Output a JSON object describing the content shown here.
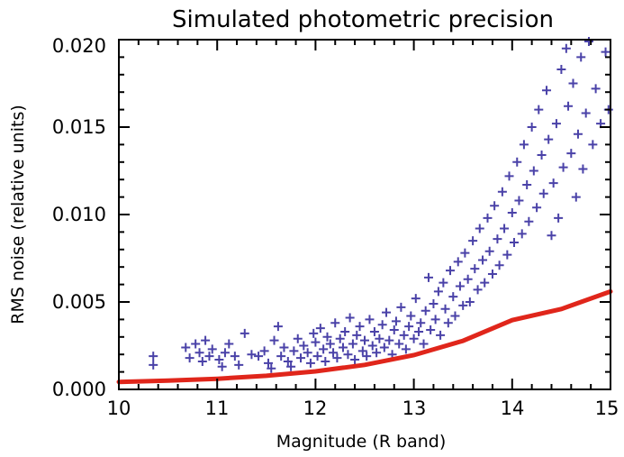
{
  "chart_data": {
    "type": "scatter",
    "title": "Simulated photometric precision",
    "xlabel": "Magnitude (R band)",
    "ylabel": "RMS noise (relative units)",
    "xlim": [
      10,
      15
    ],
    "ylim": [
      0,
      0.02
    ],
    "x_ticks": [
      "10",
      "11",
      "12",
      "13",
      "14",
      "15"
    ],
    "y_ticks": [
      "0.000",
      "0.005",
      "0.010",
      "0.015",
      "0.020"
    ],
    "grid": false,
    "legend": "none",
    "colors": {
      "points": "#4a42a8",
      "curve": "#e0261b",
      "axes": "#000000"
    },
    "series": [
      {
        "type": "scatter",
        "marker": "plus",
        "points": [
          [
            10.35,
            0.0019
          ],
          [
            10.35,
            0.0014
          ],
          [
            10.68,
            0.0024
          ],
          [
            10.72,
            0.0018
          ],
          [
            10.78,
            0.0026
          ],
          [
            10.82,
            0.0021
          ],
          [
            10.85,
            0.0016
          ],
          [
            10.88,
            0.0028
          ],
          [
            10.92,
            0.0019
          ],
          [
            10.95,
            0.0023
          ],
          [
            11.02,
            0.0017
          ],
          [
            11.05,
            0.0013
          ],
          [
            11.08,
            0.0021
          ],
          [
            11.12,
            0.0026
          ],
          [
            11.18,
            0.0019
          ],
          [
            11.22,
            0.0014
          ],
          [
            11.28,
            0.0032
          ],
          [
            11.35,
            0.002
          ],
          [
            11.42,
            0.0019
          ],
          [
            11.48,
            0.0022
          ],
          [
            11.52,
            0.0015
          ],
          [
            11.55,
            0.0012
          ],
          [
            11.58,
            0.0028
          ],
          [
            11.62,
            0.0036
          ],
          [
            11.65,
            0.0019
          ],
          [
            11.68,
            0.0024
          ],
          [
            11.72,
            0.0016
          ],
          [
            11.75,
            0.0013
          ],
          [
            11.78,
            0.0022
          ],
          [
            11.82,
            0.0029
          ],
          [
            11.85,
            0.0018
          ],
          [
            11.88,
            0.0025
          ],
          [
            11.92,
            0.0021
          ],
          [
            11.95,
            0.0015
          ],
          [
            11.98,
            0.0032
          ],
          [
            12.0,
            0.0027
          ],
          [
            12.02,
            0.0019
          ],
          [
            12.05,
            0.0035
          ],
          [
            12.08,
            0.0023
          ],
          [
            12.1,
            0.0016
          ],
          [
            12.12,
            0.003
          ],
          [
            12.15,
            0.0026
          ],
          [
            12.18,
            0.0021
          ],
          [
            12.2,
            0.0038
          ],
          [
            12.22,
            0.0018
          ],
          [
            12.25,
            0.0029
          ],
          [
            12.28,
            0.0024
          ],
          [
            12.3,
            0.0033
          ],
          [
            12.33,
            0.002
          ],
          [
            12.35,
            0.0041
          ],
          [
            12.38,
            0.0026
          ],
          [
            12.4,
            0.0017
          ],
          [
            12.42,
            0.0031
          ],
          [
            12.45,
            0.0036
          ],
          [
            12.48,
            0.0022
          ],
          [
            12.5,
            0.0028
          ],
          [
            12.52,
            0.0019
          ],
          [
            12.55,
            0.004
          ],
          [
            12.58,
            0.0025
          ],
          [
            12.6,
            0.0033
          ],
          [
            12.62,
            0.0021
          ],
          [
            12.65,
            0.0029
          ],
          [
            12.68,
            0.0037
          ],
          [
            12.7,
            0.0024
          ],
          [
            12.72,
            0.0044
          ],
          [
            12.75,
            0.0028
          ],
          [
            12.78,
            0.002
          ],
          [
            12.8,
            0.0034
          ],
          [
            12.82,
            0.0039
          ],
          [
            12.85,
            0.0026
          ],
          [
            12.87,
            0.0047
          ],
          [
            12.9,
            0.0031
          ],
          [
            12.92,
            0.0023
          ],
          [
            12.95,
            0.0036
          ],
          [
            12.97,
            0.0042
          ],
          [
            13.0,
            0.0029
          ],
          [
            13.02,
            0.0052
          ],
          [
            13.05,
            0.0033
          ],
          [
            13.07,
            0.0038
          ],
          [
            13.1,
            0.0026
          ],
          [
            13.12,
            0.0045
          ],
          [
            13.15,
            0.0064
          ],
          [
            13.17,
            0.0034
          ],
          [
            13.2,
            0.0049
          ],
          [
            13.22,
            0.004
          ],
          [
            13.25,
            0.0056
          ],
          [
            13.27,
            0.0031
          ],
          [
            13.3,
            0.0061
          ],
          [
            13.32,
            0.0046
          ],
          [
            13.35,
            0.0038
          ],
          [
            13.37,
            0.0068
          ],
          [
            13.4,
            0.0053
          ],
          [
            13.42,
            0.0042
          ],
          [
            13.45,
            0.0073
          ],
          [
            13.47,
            0.0059
          ],
          [
            13.5,
            0.0048
          ],
          [
            13.52,
            0.0078
          ],
          [
            13.55,
            0.0063
          ],
          [
            13.57,
            0.005
          ],
          [
            13.6,
            0.0085
          ],
          [
            13.62,
            0.0069
          ],
          [
            13.65,
            0.0057
          ],
          [
            13.67,
            0.0092
          ],
          [
            13.7,
            0.0074
          ],
          [
            13.72,
            0.0061
          ],
          [
            13.75,
            0.0098
          ],
          [
            13.77,
            0.0079
          ],
          [
            13.8,
            0.0066
          ],
          [
            13.82,
            0.0105
          ],
          [
            13.85,
            0.0086
          ],
          [
            13.87,
            0.0071
          ],
          [
            13.9,
            0.0113
          ],
          [
            13.92,
            0.0092
          ],
          [
            13.95,
            0.0077
          ],
          [
            13.97,
            0.0122
          ],
          [
            14.0,
            0.0101
          ],
          [
            14.02,
            0.0084
          ],
          [
            14.05,
            0.013
          ],
          [
            14.07,
            0.0108
          ],
          [
            14.1,
            0.0089
          ],
          [
            14.12,
            0.014
          ],
          [
            14.15,
            0.0117
          ],
          [
            14.17,
            0.0096
          ],
          [
            14.2,
            0.015
          ],
          [
            14.22,
            0.0125
          ],
          [
            14.25,
            0.0104
          ],
          [
            14.27,
            0.016
          ],
          [
            14.3,
            0.0134
          ],
          [
            14.32,
            0.0112
          ],
          [
            14.35,
            0.0171
          ],
          [
            14.37,
            0.0143
          ],
          [
            14.4,
            0.0088
          ],
          [
            14.42,
            0.0118
          ],
          [
            14.45,
            0.0152
          ],
          [
            14.47,
            0.0098
          ],
          [
            14.5,
            0.0183
          ],
          [
            14.52,
            0.0127
          ],
          [
            14.55,
            0.0195
          ],
          [
            14.57,
            0.0162
          ],
          [
            14.6,
            0.0135
          ],
          [
            14.62,
            0.0175
          ],
          [
            14.65,
            0.011
          ],
          [
            14.67,
            0.0146
          ],
          [
            14.7,
            0.019
          ],
          [
            14.72,
            0.0126
          ],
          [
            14.75,
            0.0158
          ],
          [
            14.78,
            0.0199
          ],
          [
            14.82,
            0.014
          ],
          [
            14.85,
            0.0172
          ],
          [
            14.9,
            0.0152
          ],
          [
            14.95,
            0.0193
          ],
          [
            14.98,
            0.016
          ]
        ]
      },
      {
        "type": "line",
        "points": [
          [
            10.0,
            0.00043
          ],
          [
            10.5,
            0.0005
          ],
          [
            11.0,
            0.00061
          ],
          [
            11.5,
            0.00078
          ],
          [
            12.0,
            0.00103
          ],
          [
            12.5,
            0.0014
          ],
          [
            13.0,
            0.00196
          ],
          [
            13.5,
            0.00278
          ],
          [
            14.0,
            0.00396
          ],
          [
            14.5,
            0.0046
          ],
          [
            15.0,
            0.0056
          ]
        ]
      }
    ]
  }
}
